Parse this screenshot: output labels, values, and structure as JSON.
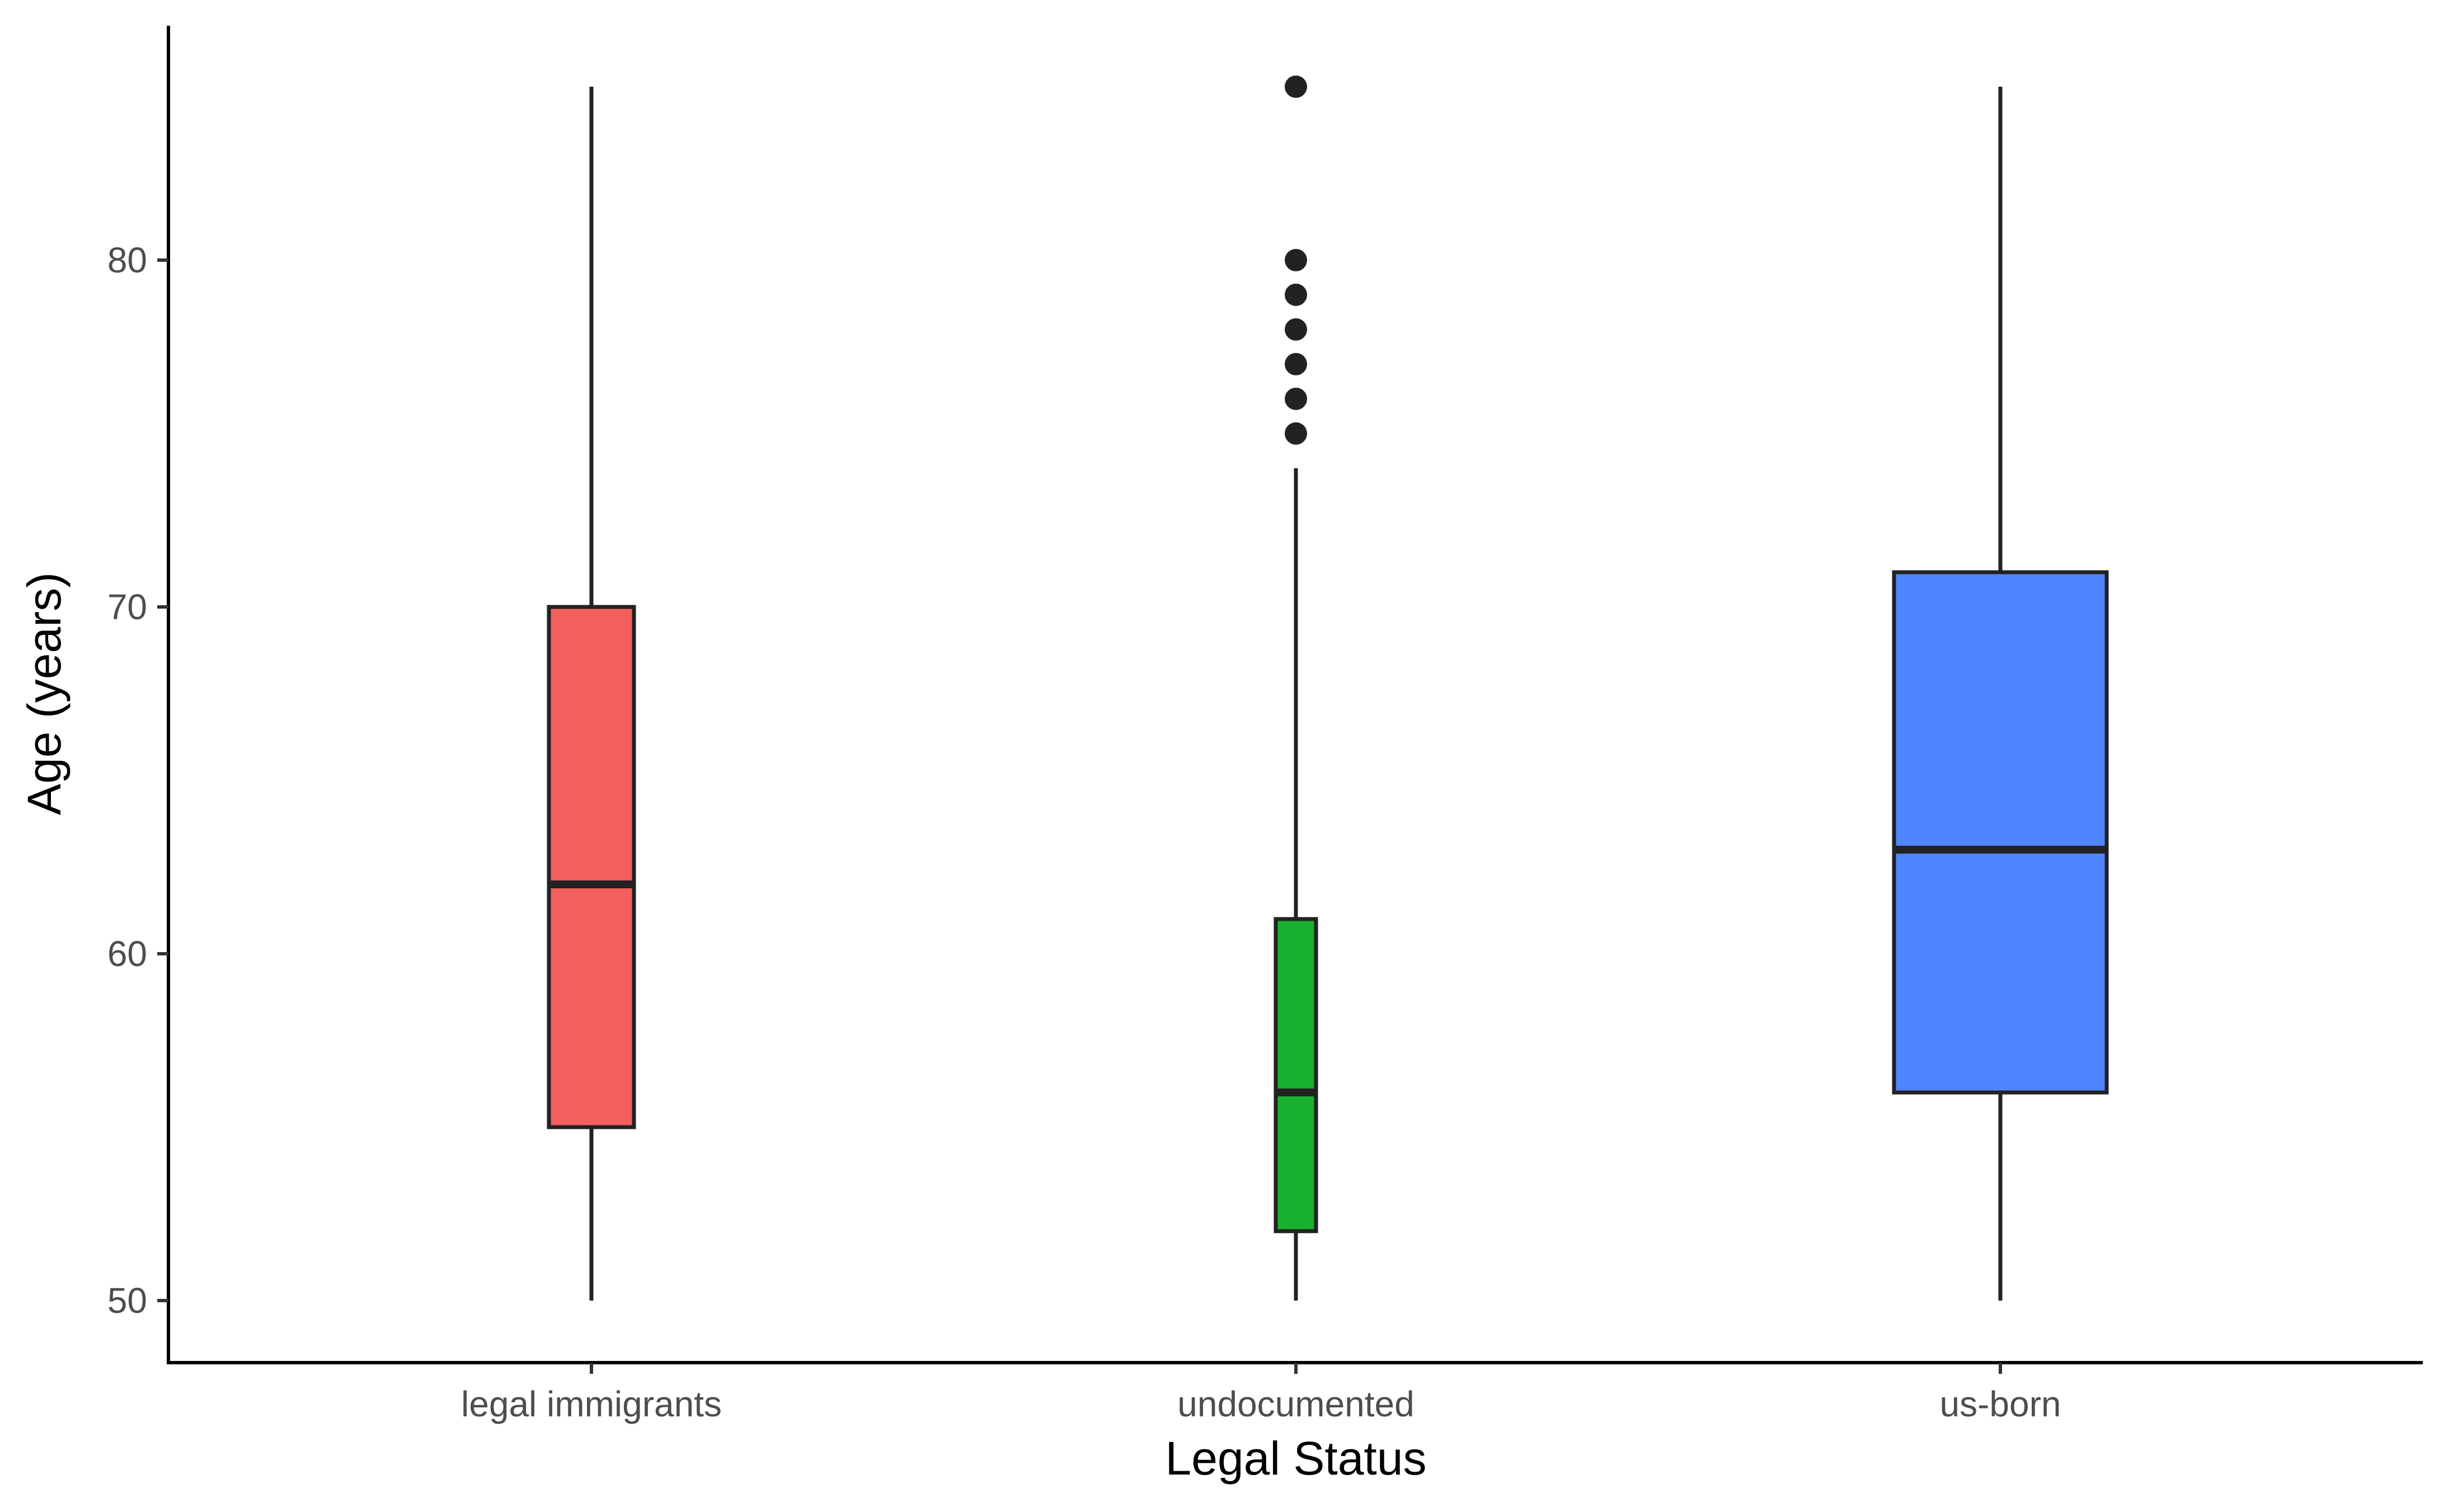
{
  "chart_data": {
    "type": "boxplot",
    "title": "",
    "xlabel": "Legal Status",
    "ylabel": "Age (years)",
    "ylim": [
      48.3,
      88.6
    ],
    "yticks": [
      50,
      60,
      70,
      80
    ],
    "grid": false,
    "legend": "none",
    "categories": [
      "legal immigrants",
      "undocumented",
      "us-born"
    ],
    "boxes": [
      {
        "category": "legal immigrants",
        "min": 50,
        "q1": 55,
        "median": 62,
        "q3": 70,
        "max": 85,
        "outliers": [],
        "color": "#F25F5C",
        "relative_width": 0.38
      },
      {
        "category": "undocumented",
        "min": 50,
        "q1": 52,
        "median": 56,
        "q3": 61,
        "max": 74,
        "outliers": [
          75,
          76,
          77,
          78,
          79,
          80,
          85
        ],
        "color": "#17B12F",
        "relative_width": 0.18
      },
      {
        "category": "us-born",
        "min": 50,
        "q1": 56,
        "median": 63,
        "q3": 71,
        "max": 85,
        "outliers": [],
        "color": "#4F86FF",
        "relative_width": 0.95
      }
    ]
  }
}
